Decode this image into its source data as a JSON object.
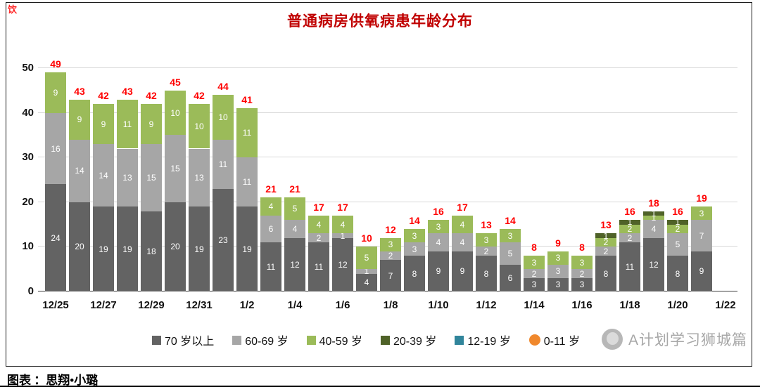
{
  "page": {
    "corner_mark": "饮",
    "caption": "图表 ：思翔•小璐",
    "watermark_text": "A计划学习狮城篇"
  },
  "style": {
    "title_color": "#c00000",
    "total_color": "#ff0000",
    "corner_color": "#ff2222",
    "watermark_color": "#9e9e9e"
  },
  "chart_data": {
    "type": "bar",
    "stacked": true,
    "title": "普通病房供氧病患年龄分布",
    "xlabel": "",
    "ylabel": "",
    "ylim": [
      0,
      50
    ],
    "yticks": [
      0,
      10,
      20,
      30,
      40,
      50
    ],
    "grid": true,
    "legend_position": "bottom",
    "x_tick_labels": [
      "12/25",
      "12/27",
      "12/29",
      "12/31",
      "1/2",
      "1/4",
      "1/6",
      "1/8",
      "1/10",
      "1/12",
      "1/14",
      "1/16",
      "1/18",
      "1/20",
      "1/22"
    ],
    "categories": [
      "12/25",
      "12/26",
      "12/27",
      "12/28",
      "12/29",
      "12/30",
      "12/31",
      "1/1",
      "1/2",
      "1/3",
      "1/4",
      "1/5",
      "1/6",
      "1/7",
      "1/8",
      "1/9",
      "1/10",
      "1/11",
      "1/12",
      "1/13",
      "1/14",
      "1/15",
      "1/16",
      "1/17",
      "1/18",
      "1/19",
      "1/20",
      "1/21"
    ],
    "totals": [
      49,
      43,
      42,
      43,
      42,
      45,
      42,
      44,
      41,
      21,
      21,
      17,
      17,
      10,
      12,
      14,
      16,
      17,
      13,
      14,
      8,
      9,
      8,
      13,
      16,
      18,
      16,
      19
    ],
    "series": [
      {
        "name": "70 岁以上",
        "color": "#636363",
        "shape": "square",
        "values": [
          24,
          20,
          19,
          19,
          18,
          20,
          19,
          23,
          19,
          11,
          12,
          11,
          12,
          4,
          7,
          8,
          9,
          9,
          8,
          6,
          3,
          3,
          3,
          8,
          11,
          12,
          8,
          9
        ]
      },
      {
        "name": "60-69 岁",
        "color": "#a6a6a6",
        "shape": "square",
        "values": [
          16,
          14,
          14,
          13,
          15,
          15,
          13,
          11,
          11,
          6,
          4,
          2,
          1,
          1,
          2,
          3,
          4,
          4,
          2,
          5,
          2,
          3,
          2,
          2,
          2,
          4,
          5,
          7
        ]
      },
      {
        "name": "40-59 岁",
        "color": "#9bbb59",
        "shape": "square",
        "values": [
          9,
          9,
          9,
          11,
          9,
          10,
          10,
          10,
          11,
          4,
          5,
          4,
          4,
          5,
          3,
          3,
          3,
          4,
          3,
          3,
          3,
          3,
          3,
          2,
          2,
          1,
          2,
          3
        ]
      },
      {
        "name": "20-39 岁",
        "color": "#4f6228",
        "shape": "square",
        "values": [
          0,
          0,
          0,
          0,
          0,
          0,
          0,
          0,
          0,
          0,
          0,
          0,
          0,
          0,
          0,
          0,
          0,
          0,
          0,
          0,
          0,
          0,
          0,
          1,
          1,
          1,
          1,
          0
        ]
      },
      {
        "name": "12-19 岁",
        "color": "#31859b",
        "shape": "square",
        "values": [
          0,
          0,
          0,
          0,
          0,
          0,
          0,
          0,
          0,
          0,
          0,
          0,
          0,
          0,
          0,
          0,
          0,
          0,
          0,
          0,
          0,
          0,
          0,
          0,
          0,
          0,
          0,
          0
        ]
      },
      {
        "name": "0-11 岁",
        "color": "#f0882c",
        "shape": "circle",
        "values": [
          0,
          0,
          0,
          0,
          0,
          0,
          0,
          0,
          0,
          0,
          0,
          0,
          0,
          0,
          0,
          0,
          0,
          0,
          0,
          0,
          0,
          0,
          0,
          0,
          0,
          0,
          0,
          0
        ]
      }
    ]
  }
}
